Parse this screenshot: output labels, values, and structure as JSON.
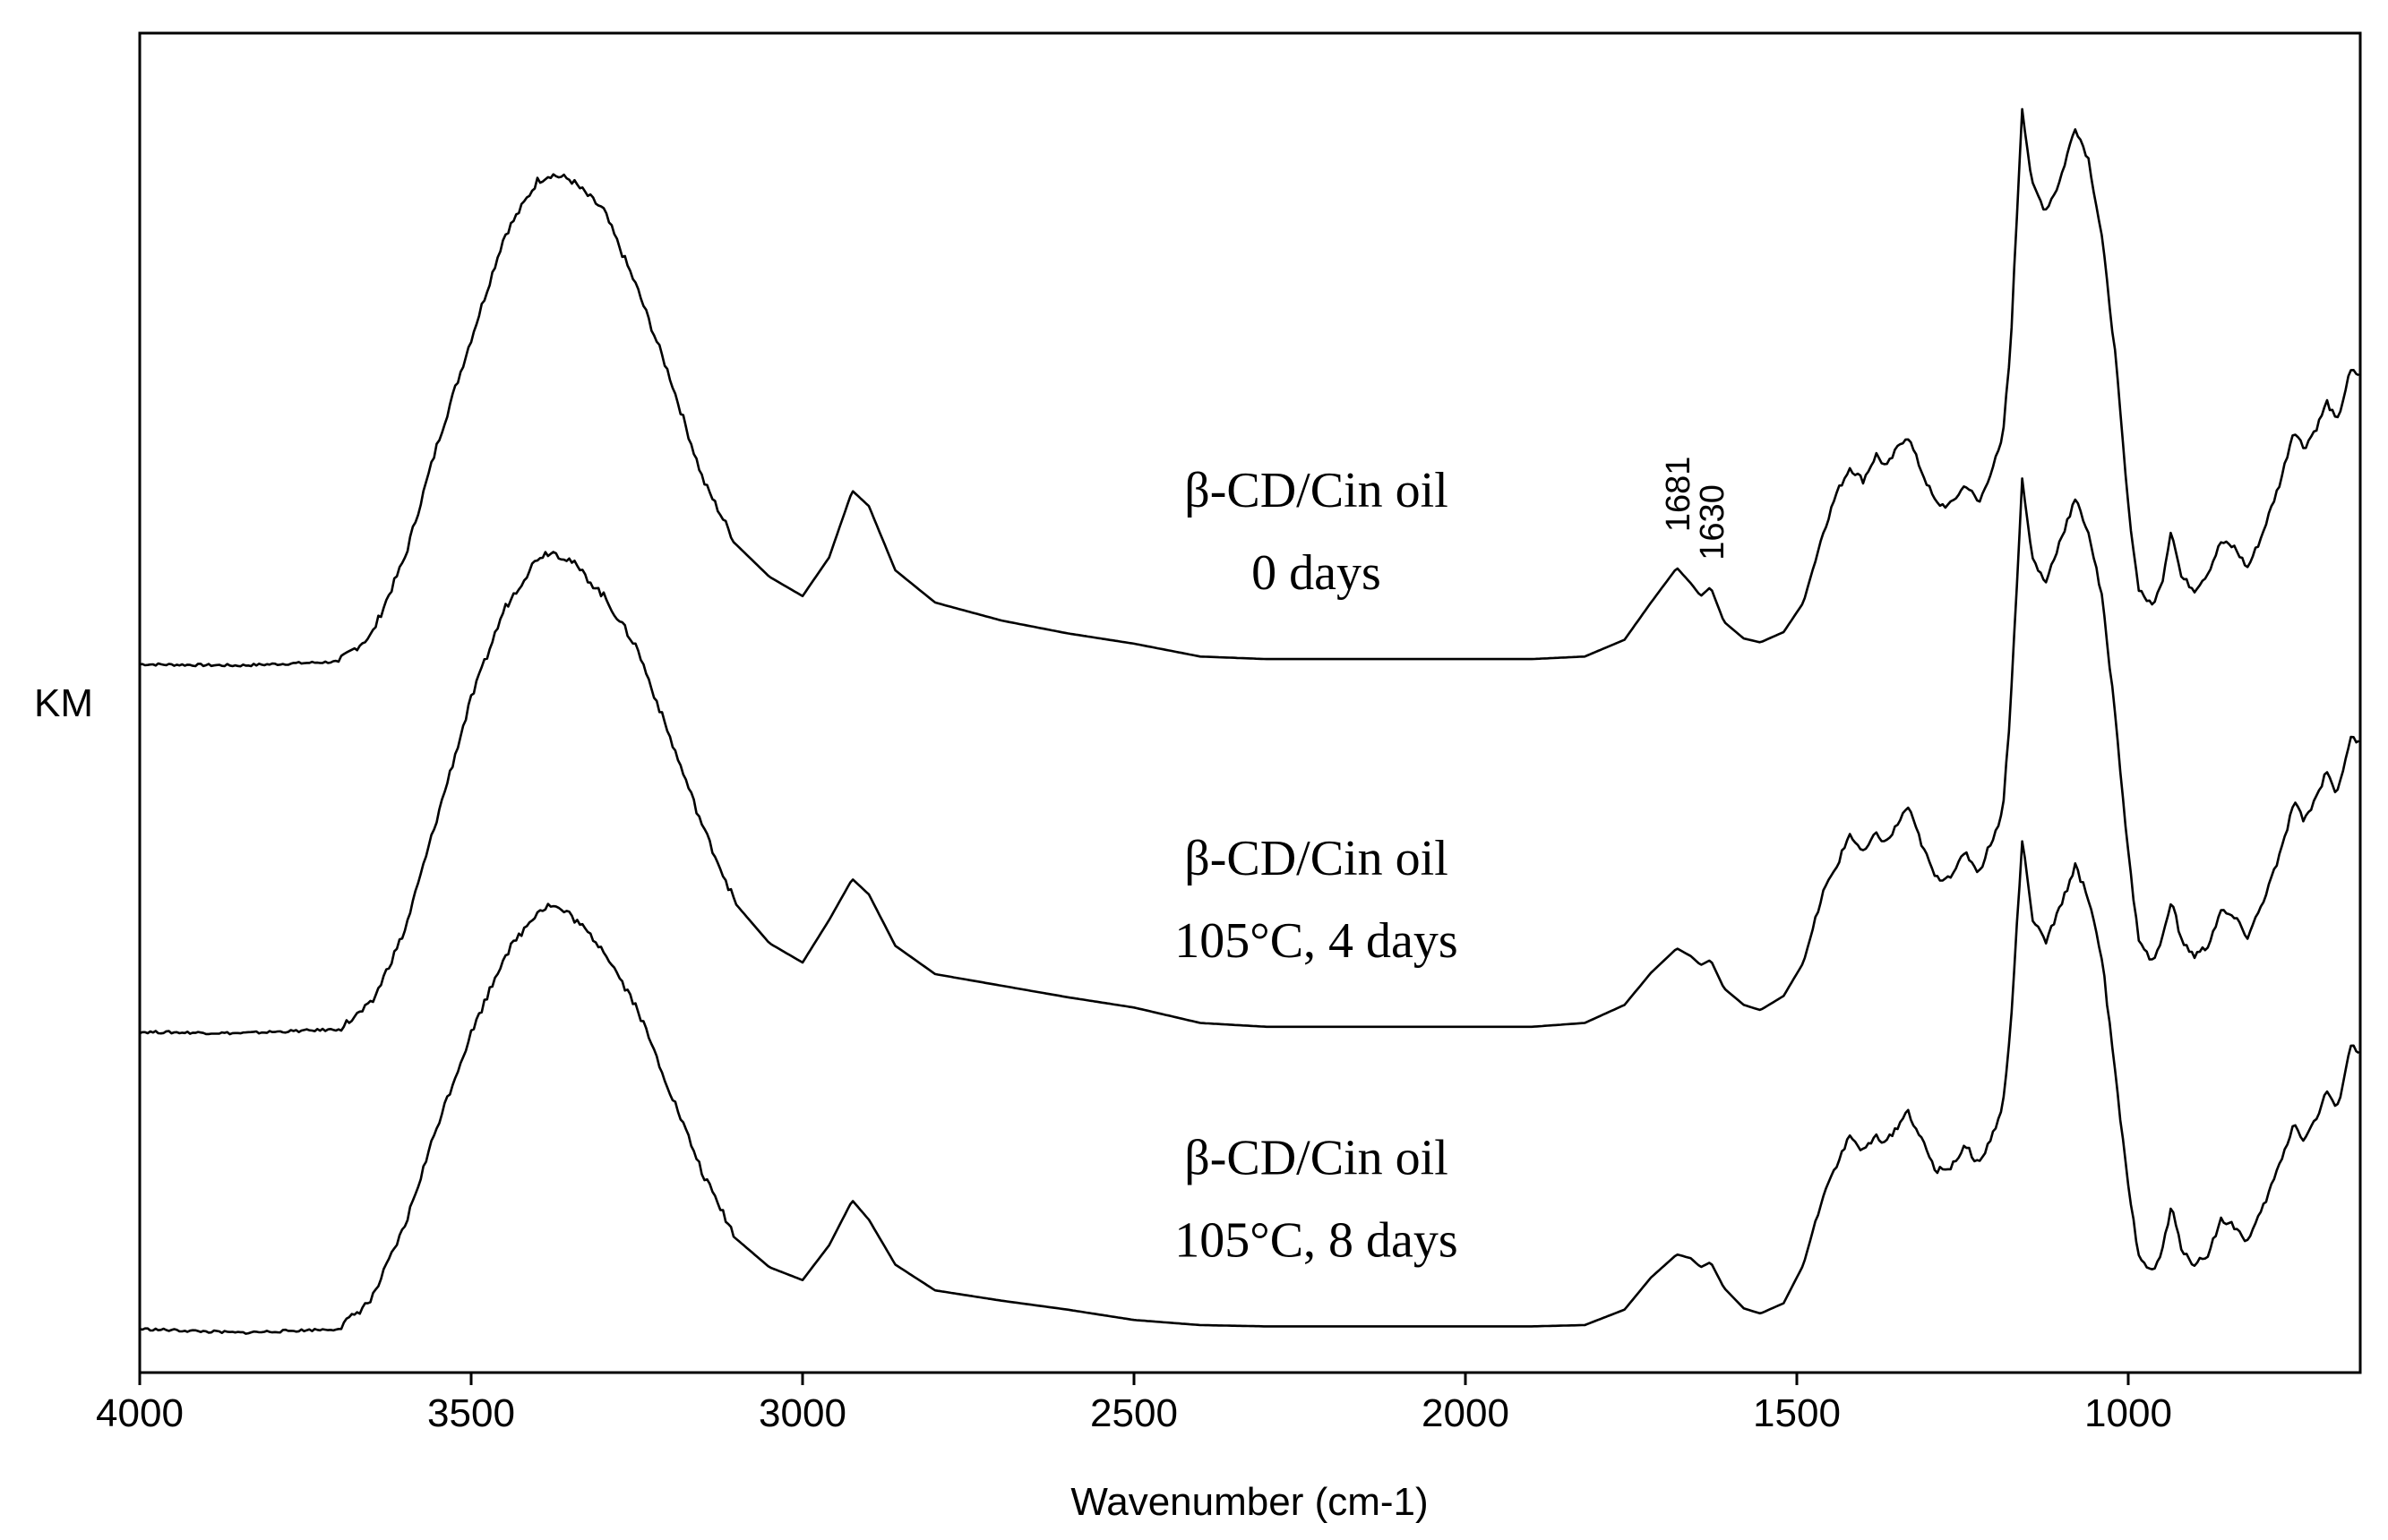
{
  "chart_data": {
    "type": "line",
    "title": "",
    "xlabel": "Wavenumber (cm-1)",
    "ylabel": "KM",
    "xlim": [
      4000,
      650
    ],
    "x_reversed": true,
    "xticks": [
      4000,
      3500,
      3000,
      2500,
      2000,
      1500,
      1000
    ],
    "y_tick_labels_shown": false,
    "ylim": [
      0,
      1
    ],
    "series": [
      {
        "name": "β-CD/Cin oil 0 days",
        "label_lines": [
          "β-CD/Cin oil",
          "0 days"
        ],
        "points": [
          [
            4000,
            0.537
          ],
          [
            3850,
            0.536
          ],
          [
            3700,
            0.539
          ],
          [
            3650,
            0.56
          ],
          [
            3600,
            0.62
          ],
          [
            3550,
            0.71
          ],
          [
            3500,
            0.79
          ],
          [
            3450,
            0.87
          ],
          [
            3400,
            0.913
          ],
          [
            3380,
            0.918
          ],
          [
            3350,
            0.914
          ],
          [
            3300,
            0.89
          ],
          [
            3250,
            0.83
          ],
          [
            3200,
            0.76
          ],
          [
            3150,
            0.68
          ],
          [
            3100,
            0.63
          ],
          [
            3050,
            0.605
          ],
          [
            3000,
            0.59
          ],
          [
            2960,
            0.62
          ],
          [
            2925,
            0.672
          ],
          [
            2900,
            0.66
          ],
          [
            2860,
            0.61
          ],
          [
            2800,
            0.585
          ],
          [
            2700,
            0.571
          ],
          [
            2600,
            0.561
          ],
          [
            2500,
            0.553
          ],
          [
            2400,
            0.543
          ],
          [
            2300,
            0.541
          ],
          [
            2200,
            0.541
          ],
          [
            2100,
            0.541
          ],
          [
            2000,
            0.541
          ],
          [
            1900,
            0.541
          ],
          [
            1820,
            0.543
          ],
          [
            1760,
            0.556
          ],
          [
            1720,
            0.585
          ],
          [
            1681,
            0.612
          ],
          [
            1660,
            0.6
          ],
          [
            1645,
            0.59
          ],
          [
            1630,
            0.597
          ],
          [
            1610,
            0.57
          ],
          [
            1580,
            0.557
          ],
          [
            1555,
            0.554
          ],
          [
            1520,
            0.562
          ],
          [
            1490,
            0.585
          ],
          [
            1460,
            0.64
          ],
          [
            1440,
            0.67
          ],
          [
            1420,
            0.69
          ],
          [
            1400,
            0.68
          ],
          [
            1380,
            0.7
          ],
          [
            1365,
            0.69
          ],
          [
            1345,
            0.708
          ],
          [
            1333,
            0.715
          ],
          [
            1310,
            0.685
          ],
          [
            1290,
            0.662
          ],
          [
            1270,
            0.66
          ],
          [
            1245,
            0.677
          ],
          [
            1225,
            0.662
          ],
          [
            1210,
            0.683
          ],
          [
            1190,
            0.71
          ],
          [
            1178,
            0.78
          ],
          [
            1160,
            0.97
          ],
          [
            1145,
            0.91
          ],
          [
            1125,
            0.89
          ],
          [
            1105,
            0.91
          ],
          [
            1080,
            0.955
          ],
          [
            1060,
            0.93
          ],
          [
            1040,
            0.87
          ],
          [
            1020,
            0.78
          ],
          [
            1000,
            0.66
          ],
          [
            985,
            0.597
          ],
          [
            965,
            0.582
          ],
          [
            950,
            0.598
          ],
          [
            935,
            0.643
          ],
          [
            920,
            0.605
          ],
          [
            900,
            0.595
          ],
          [
            880,
            0.608
          ],
          [
            860,
            0.632
          ],
          [
            840,
            0.628
          ],
          [
            820,
            0.612
          ],
          [
            800,
            0.635
          ],
          [
            770,
            0.68
          ],
          [
            750,
            0.72
          ],
          [
            735,
            0.705
          ],
          [
            715,
            0.722
          ],
          [
            700,
            0.741
          ],
          [
            685,
            0.725
          ],
          [
            665,
            0.765
          ],
          [
            650,
            0.762
          ]
        ]
      },
      {
        "name": "β-CD/Cin oil 105°C, 4 days",
        "label_lines": [
          "β-CD/Cin oil",
          "105°C, 4 days"
        ],
        "points": [
          [
            4000,
            0.251
          ],
          [
            3850,
            0.25
          ],
          [
            3700,
            0.253
          ],
          [
            3650,
            0.273
          ],
          [
            3600,
            0.33
          ],
          [
            3550,
            0.42
          ],
          [
            3500,
            0.51
          ],
          [
            3450,
            0.58
          ],
          [
            3400,
            0.62
          ],
          [
            3380,
            0.625
          ],
          [
            3350,
            0.618
          ],
          [
            3300,
            0.59
          ],
          [
            3250,
            0.55
          ],
          [
            3200,
            0.48
          ],
          [
            3150,
            0.41
          ],
          [
            3100,
            0.35
          ],
          [
            3050,
            0.32
          ],
          [
            3000,
            0.305
          ],
          [
            2960,
            0.338
          ],
          [
            2925,
            0.37
          ],
          [
            2900,
            0.358
          ],
          [
            2860,
            0.318
          ],
          [
            2800,
            0.296
          ],
          [
            2700,
            0.287
          ],
          [
            2600,
            0.278
          ],
          [
            2500,
            0.27
          ],
          [
            2400,
            0.258
          ],
          [
            2300,
            0.255
          ],
          [
            2200,
            0.255
          ],
          [
            2100,
            0.255
          ],
          [
            2000,
            0.255
          ],
          [
            1900,
            0.255
          ],
          [
            1820,
            0.258
          ],
          [
            1760,
            0.272
          ],
          [
            1720,
            0.297
          ],
          [
            1681,
            0.316
          ],
          [
            1660,
            0.31
          ],
          [
            1645,
            0.303
          ],
          [
            1630,
            0.307
          ],
          [
            1610,
            0.285
          ],
          [
            1580,
            0.272
          ],
          [
            1555,
            0.268
          ],
          [
            1520,
            0.279
          ],
          [
            1490,
            0.305
          ],
          [
            1460,
            0.36
          ],
          [
            1440,
            0.38
          ],
          [
            1420,
            0.405
          ],
          [
            1400,
            0.39
          ],
          [
            1380,
            0.405
          ],
          [
            1365,
            0.398
          ],
          [
            1345,
            0.415
          ],
          [
            1333,
            0.427
          ],
          [
            1310,
            0.395
          ],
          [
            1290,
            0.37
          ],
          [
            1270,
            0.372
          ],
          [
            1245,
            0.39
          ],
          [
            1225,
            0.375
          ],
          [
            1210,
            0.395
          ],
          [
            1190,
            0.42
          ],
          [
            1178,
            0.5
          ],
          [
            1160,
            0.68
          ],
          [
            1145,
            0.62
          ],
          [
            1125,
            0.6
          ],
          [
            1105,
            0.63
          ],
          [
            1080,
            0.665
          ],
          [
            1060,
            0.64
          ],
          [
            1040,
            0.59
          ],
          [
            1020,
            0.5
          ],
          [
            1000,
            0.39
          ],
          [
            985,
            0.325
          ],
          [
            965,
            0.305
          ],
          [
            950,
            0.32
          ],
          [
            935,
            0.355
          ],
          [
            920,
            0.322
          ],
          [
            900,
            0.31
          ],
          [
            880,
            0.318
          ],
          [
            860,
            0.345
          ],
          [
            840,
            0.34
          ],
          [
            820,
            0.325
          ],
          [
            800,
            0.348
          ],
          [
            770,
            0.39
          ],
          [
            750,
            0.43
          ],
          [
            735,
            0.415
          ],
          [
            715,
            0.435
          ],
          [
            700,
            0.455
          ],
          [
            685,
            0.435
          ],
          [
            665,
            0.48
          ],
          [
            650,
            0.475
          ]
        ]
      },
      {
        "name": "β-CD/Cin oil 105°C, 8 days",
        "label_lines": [
          "β-CD/Cin oil",
          "105°C, 8 days"
        ],
        "points": [
          [
            4000,
            0.02
          ],
          [
            3850,
            0.017
          ],
          [
            3700,
            0.02
          ],
          [
            3650,
            0.043
          ],
          [
            3600,
            0.1
          ],
          [
            3550,
            0.18
          ],
          [
            3500,
            0.25
          ],
          [
            3450,
            0.31
          ],
          [
            3400,
            0.345
          ],
          [
            3380,
            0.35
          ],
          [
            3350,
            0.342
          ],
          [
            3300,
            0.315
          ],
          [
            3250,
            0.27
          ],
          [
            3200,
            0.205
          ],
          [
            3150,
            0.14
          ],
          [
            3100,
            0.09
          ],
          [
            3050,
            0.068
          ],
          [
            3000,
            0.058
          ],
          [
            2960,
            0.085
          ],
          [
            2925,
            0.12
          ],
          [
            2900,
            0.105
          ],
          [
            2860,
            0.07
          ],
          [
            2800,
            0.05
          ],
          [
            2700,
            0.042
          ],
          [
            2600,
            0.035
          ],
          [
            2500,
            0.027
          ],
          [
            2400,
            0.023
          ],
          [
            2300,
            0.022
          ],
          [
            2200,
            0.022
          ],
          [
            2100,
            0.022
          ],
          [
            2000,
            0.022
          ],
          [
            1900,
            0.022
          ],
          [
            1820,
            0.023
          ],
          [
            1760,
            0.035
          ],
          [
            1720,
            0.06
          ],
          [
            1681,
            0.078
          ],
          [
            1660,
            0.075
          ],
          [
            1645,
            0.068
          ],
          [
            1630,
            0.072
          ],
          [
            1610,
            0.052
          ],
          [
            1580,
            0.036
          ],
          [
            1555,
            0.032
          ],
          [
            1520,
            0.04
          ],
          [
            1490,
            0.07
          ],
          [
            1460,
            0.125
          ],
          [
            1440,
            0.148
          ],
          [
            1420,
            0.17
          ],
          [
            1400,
            0.158
          ],
          [
            1380,
            0.17
          ],
          [
            1365,
            0.165
          ],
          [
            1345,
            0.18
          ],
          [
            1333,
            0.19
          ],
          [
            1310,
            0.165
          ],
          [
            1290,
            0.143
          ],
          [
            1270,
            0.145
          ],
          [
            1245,
            0.162
          ],
          [
            1225,
            0.148
          ],
          [
            1210,
            0.165
          ],
          [
            1190,
            0.19
          ],
          [
            1178,
            0.25
          ],
          [
            1160,
            0.4
          ],
          [
            1145,
            0.34
          ],
          [
            1125,
            0.32
          ],
          [
            1105,
            0.345
          ],
          [
            1080,
            0.38
          ],
          [
            1060,
            0.355
          ],
          [
            1040,
            0.31
          ],
          [
            1020,
            0.22
          ],
          [
            1000,
            0.13
          ],
          [
            985,
            0.08
          ],
          [
            965,
            0.063
          ],
          [
            950,
            0.078
          ],
          [
            935,
            0.115
          ],
          [
            920,
            0.083
          ],
          [
            900,
            0.07
          ],
          [
            880,
            0.078
          ],
          [
            860,
            0.105
          ],
          [
            840,
            0.1
          ],
          [
            820,
            0.088
          ],
          [
            800,
            0.11
          ],
          [
            770,
            0.15
          ],
          [
            750,
            0.18
          ],
          [
            735,
            0.167
          ],
          [
            715,
            0.185
          ],
          [
            700,
            0.205
          ],
          [
            685,
            0.19
          ],
          [
            665,
            0.24
          ],
          [
            650,
            0.235
          ]
        ]
      }
    ],
    "annotations": [
      {
        "text": "1681",
        "x": 1681,
        "series": 0,
        "rotation": "vertical"
      },
      {
        "text": "1630",
        "x": 1630,
        "series": 0,
        "rotation": "vertical"
      }
    ]
  }
}
